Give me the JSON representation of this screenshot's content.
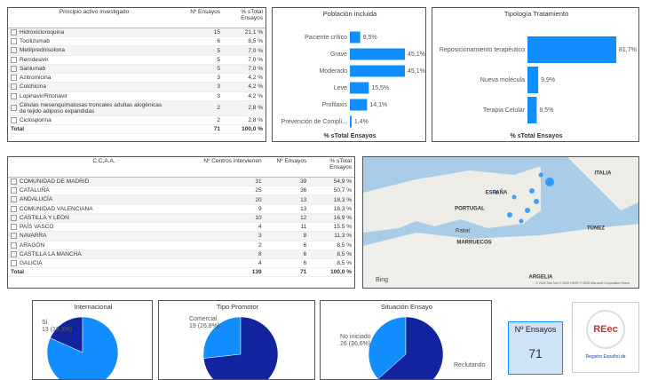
{
  "table_principio": {
    "columns": [
      "Principio activo investigado",
      "Nº Ensayos",
      "% sTotal Ensayos"
    ],
    "rows": [
      [
        "Hidroxicloroquina",
        15,
        "21,1 %"
      ],
      [
        "Tocilizumab",
        6,
        "8,5 %"
      ],
      [
        "Metilprednisolona",
        5,
        "7,0 %"
      ],
      [
        "Remdesivir",
        5,
        "7,0 %"
      ],
      [
        "Sarilumab",
        5,
        "7,0 %"
      ],
      [
        "Azitromicina",
        3,
        "4,2 %"
      ],
      [
        "Colchicina",
        3,
        "4,2 %"
      ],
      [
        "Lopinavir/Ritonavir",
        3,
        "4,2 %"
      ],
      [
        "Células mesenquimatosas troncales adultas alogénicas de tejido adiposo expandidas",
        2,
        "2,8 %"
      ],
      [
        "Ciclosporina",
        2,
        "2,8 %"
      ]
    ],
    "total": [
      "Total",
      71,
      "100,0 %"
    ]
  },
  "chart_data": [
    {
      "type": "bar",
      "title": "Población incluida",
      "x_label": "% sTotal Ensayos",
      "categories": [
        "Paciente crítico",
        "Grave",
        "Moderado",
        "Leve",
        "Profilaxis",
        "Prevención de Compli..."
      ],
      "values": [
        8.5,
        45.1,
        45.1,
        15.5,
        14.1,
        1.4
      ],
      "value_labels": [
        "8,5%",
        "45,1%",
        "45,1%",
        "15,5%",
        "14,1%",
        "1,4%"
      ],
      "color": "#118dff"
    },
    {
      "type": "bar",
      "title": "Tipología Tratamiento",
      "x_label": "% sTotal Ensayos",
      "categories": [
        "Reposicionamiento terapéutico",
        "Nueva molécula",
        "Terapia Celular"
      ],
      "values": [
        81.7,
        9.9,
        8.5
      ],
      "value_labels": [
        "81,7%",
        "9,9%",
        "8,5%"
      ],
      "color": "#118dff"
    },
    {
      "type": "pie",
      "title": "Internacional",
      "categories": [
        "Sí",
        null
      ],
      "values": [
        13,
        58
      ],
      "value_labels": [
        "13 (18,3%)",
        null
      ],
      "colors": [
        "#12239e",
        "#118dff"
      ]
    },
    {
      "type": "pie",
      "title": "Tipo Promotor",
      "categories": [
        "Comercial",
        null
      ],
      "values": [
        19,
        52
      ],
      "value_labels": [
        "19 (26,8%)",
        null
      ],
      "colors": [
        "#118dff",
        "#12239e"
      ]
    },
    {
      "type": "pie",
      "title": "Situación Ensayo",
      "categories": [
        "No iniciado",
        "Reclutando"
      ],
      "values": [
        26,
        45
      ],
      "value_labels": [
        "26 (36,6%)",
        null
      ],
      "colors": [
        "#118dff",
        "#12239e"
      ]
    }
  ],
  "table_ccaa": {
    "columns": [
      "C.C.A.A.",
      "Nº Centros intervienen",
      "Nº Ensayos",
      "% sTotal Ensayos"
    ],
    "rows": [
      [
        "COMUNIDAD DE MADRID",
        31,
        39,
        "54,9 %"
      ],
      [
        "CATALUÑA",
        25,
        36,
        "50,7 %"
      ],
      [
        "ANDALUCÍA",
        20,
        13,
        "18,3 %"
      ],
      [
        "COMUNIDAD VALENCIANA",
        9,
        13,
        "18,3 %"
      ],
      [
        "CASTILLA Y LEÓN",
        10,
        12,
        "16,9 %"
      ],
      [
        "PAÍS VASCO",
        4,
        11,
        "15,5 %"
      ],
      [
        "NAVARRA",
        3,
        8,
        "11,3 %"
      ],
      [
        "ARAGÓN",
        2,
        6,
        "8,5 %"
      ],
      [
        "CASTILLA LA MANCHA",
        8,
        6,
        "8,5 %"
      ],
      [
        "GALICIA",
        4,
        6,
        "8,5 %"
      ]
    ],
    "total": [
      "Total",
      139,
      71,
      "100,0 %"
    ]
  },
  "map": {
    "labels": [
      "ITALIA",
      "ESPAÑA",
      "PORTUGAL",
      "TÚNEZ",
      "MARRUECOS",
      "ARGELIA",
      "Rabat"
    ],
    "brand": "Bing",
    "attribution": "© 2020 TomTom © 2020 HERE © 2020 Microsoft Corporation Terms"
  },
  "kpi": {
    "label": "Nº Ensayos",
    "value": 71
  },
  "logo": {
    "mark": "REec",
    "text": "Registro Español de"
  }
}
